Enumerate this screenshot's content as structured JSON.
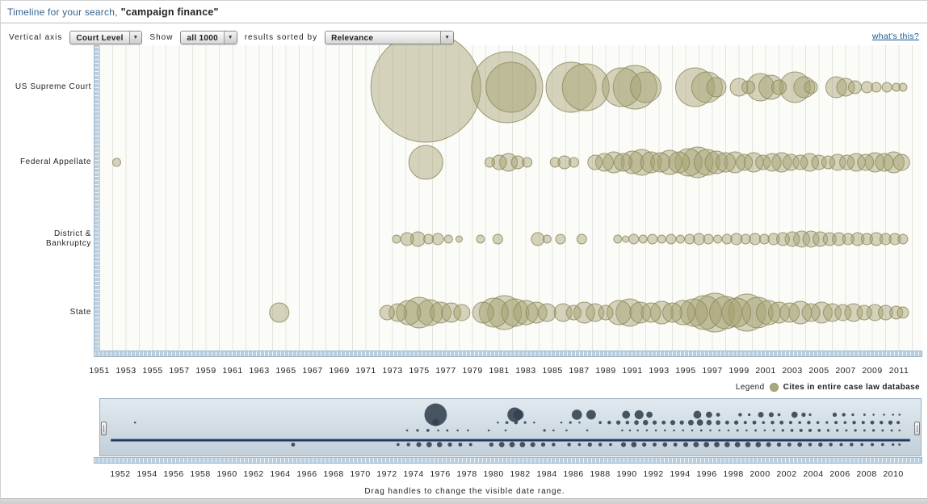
{
  "header": {
    "prefix": "Timeline for your search,",
    "query": "\"campaign finance\""
  },
  "toolbar": {
    "vertical_axis_label": "Vertical axis",
    "vertical_axis_value": "Court Level",
    "show_label": "Show",
    "show_value": "all 1000",
    "sorted_by_label": "results sorted by",
    "sorted_by_value": "Relevance",
    "whats_this_link": "what's this?"
  },
  "chart": {
    "rows": [
      {
        "label": "US Supreme Court"
      },
      {
        "label": "Federal Appellate"
      },
      {
        "label": "District &\nBankruptcy"
      },
      {
        "label": "State"
      }
    ],
    "x_ticks": [
      1951,
      1953,
      1955,
      1957,
      1959,
      1961,
      1963,
      1965,
      1967,
      1969,
      1971,
      1973,
      1975,
      1977,
      1979,
      1981,
      1983,
      1985,
      1987,
      1989,
      1991,
      1993,
      1995,
      1997,
      1999,
      2001,
      2003,
      2005,
      2007,
      2009,
      2011
    ]
  },
  "legend": {
    "label": "Legend",
    "item_label": "Cites in entire case law database"
  },
  "minimap": {
    "x_ticks": [
      1952,
      1954,
      1956,
      1958,
      1960,
      1962,
      1964,
      1966,
      1968,
      1970,
      1972,
      1974,
      1976,
      1978,
      1980,
      1982,
      1984,
      1986,
      1988,
      1990,
      1992,
      1994,
      1996,
      1998,
      2000,
      2002,
      2004,
      2006,
      2008,
      2010
    ],
    "instruction": "Drag handles to change the visible date range."
  },
  "colors": {
    "bubble_fill": "#a39f6e",
    "bubble_stroke": "#8d8a5e",
    "minimap_bubble": "#32404f",
    "minimap_line": "#1c3a5e",
    "scrollbar_blue": "#b9cfe0"
  },
  "chart_data": {
    "type": "bubble-timeline",
    "title": "Timeline for your search: \"campaign finance\"",
    "bubble_meaning": "Cites in entire case law database",
    "x_axis": {
      "min": 1951,
      "max": 2011,
      "tick_step": 2
    },
    "y_categories": [
      "US Supreme Court",
      "Federal Appellate",
      "District & Bankruptcy",
      "State"
    ],
    "series": [
      {
        "category": "US Supreme Court",
        "bubbles": [
          [
            1975.5,
            68
          ],
          [
            1981.6,
            44
          ],
          [
            1981.9,
            31
          ],
          [
            1986.4,
            31
          ],
          [
            1987.5,
            29
          ],
          [
            1990.2,
            24
          ],
          [
            1991.2,
            27
          ],
          [
            1992.0,
            19
          ],
          [
            1995.7,
            24
          ],
          [
            1996.6,
            19
          ],
          [
            1997.3,
            12
          ],
          [
            1999.0,
            11
          ],
          [
            1999.7,
            8
          ],
          [
            2000.6,
            17
          ],
          [
            2001.4,
            15
          ],
          [
            2002.0,
            9
          ],
          [
            2003.2,
            19
          ],
          [
            2003.9,
            13
          ],
          [
            2004.4,
            8
          ],
          [
            2006.3,
            13
          ],
          [
            2007.0,
            11
          ],
          [
            2007.7,
            8
          ],
          [
            2008.6,
            7
          ],
          [
            2009.3,
            6
          ],
          [
            2010.1,
            6
          ],
          [
            2010.8,
            5
          ],
          [
            2011.3,
            5
          ]
        ]
      },
      {
        "category": "Federal Appellate",
        "bubbles": [
          [
            1952.3,
            5
          ],
          [
            1975.5,
            21
          ],
          [
            1980.3,
            6
          ],
          [
            1981.0,
            9
          ],
          [
            1981.7,
            11
          ],
          [
            1982.4,
            8
          ],
          [
            1983.1,
            6
          ],
          [
            1985.2,
            6
          ],
          [
            1985.9,
            8
          ],
          [
            1986.6,
            6
          ],
          [
            1988.2,
            9
          ],
          [
            1988.9,
            11
          ],
          [
            1989.6,
            13
          ],
          [
            1990.3,
            11
          ],
          [
            1991.0,
            14
          ],
          [
            1991.7,
            16
          ],
          [
            1992.4,
            13
          ],
          [
            1993.1,
            12
          ],
          [
            1993.8,
            15
          ],
          [
            1994.5,
            13
          ],
          [
            1995.2,
            17
          ],
          [
            1995.9,
            19
          ],
          [
            1996.6,
            16
          ],
          [
            1997.3,
            14
          ],
          [
            1998.0,
            12
          ],
          [
            1998.7,
            13
          ],
          [
            1999.4,
            10
          ],
          [
            2000.1,
            12
          ],
          [
            2000.8,
            9
          ],
          [
            2001.5,
            11
          ],
          [
            2002.2,
            12
          ],
          [
            2002.9,
            10
          ],
          [
            2003.6,
            9
          ],
          [
            2004.3,
            11
          ],
          [
            2005.0,
            9
          ],
          [
            2005.7,
            8
          ],
          [
            2006.4,
            10
          ],
          [
            2007.1,
            9
          ],
          [
            2007.8,
            11
          ],
          [
            2008.5,
            10
          ],
          [
            2009.2,
            12
          ],
          [
            2009.9,
            11
          ],
          [
            2010.6,
            13
          ],
          [
            2011.2,
            10
          ]
        ]
      },
      {
        "category": "District & Bankruptcy",
        "bubbles": [
          [
            1973.3,
            5
          ],
          [
            1974.1,
            8
          ],
          [
            1974.9,
            9
          ],
          [
            1975.7,
            6
          ],
          [
            1976.4,
            7
          ],
          [
            1977.2,
            5
          ],
          [
            1978.0,
            4
          ],
          [
            1979.6,
            5
          ],
          [
            1980.9,
            6
          ],
          [
            1983.9,
            8
          ],
          [
            1984.6,
            5
          ],
          [
            1985.6,
            6
          ],
          [
            1987.2,
            6
          ],
          [
            1989.9,
            5
          ],
          [
            1990.5,
            4
          ],
          [
            1991.1,
            6
          ],
          [
            1991.8,
            5
          ],
          [
            1992.5,
            6
          ],
          [
            1993.2,
            5
          ],
          [
            1993.9,
            6
          ],
          [
            1994.6,
            5
          ],
          [
            1995.3,
            6
          ],
          [
            1996.0,
            7
          ],
          [
            1996.7,
            6
          ],
          [
            1997.4,
            5
          ],
          [
            1998.1,
            6
          ],
          [
            1998.8,
            7
          ],
          [
            1999.5,
            6
          ],
          [
            2000.2,
            7
          ],
          [
            2000.9,
            6
          ],
          [
            2001.6,
            7
          ],
          [
            2002.3,
            8
          ],
          [
            2003.0,
            9
          ],
          [
            2003.7,
            10
          ],
          [
            2004.4,
            10
          ],
          [
            2005.1,
            9
          ],
          [
            2005.8,
            8
          ],
          [
            2006.5,
            8
          ],
          [
            2007.2,
            7
          ],
          [
            2007.9,
            8
          ],
          [
            2008.6,
            7
          ],
          [
            2009.3,
            8
          ],
          [
            2010.0,
            7
          ],
          [
            2010.7,
            7
          ],
          [
            2011.3,
            6
          ]
        ]
      },
      {
        "category": "State",
        "bubbles": [
          [
            1964.5,
            12
          ],
          [
            1972.6,
            9
          ],
          [
            1973.4,
            11
          ],
          [
            1974.2,
            15
          ],
          [
            1975.0,
            19
          ],
          [
            1975.8,
            16
          ],
          [
            1976.6,
            13
          ],
          [
            1977.4,
            12
          ],
          [
            1978.2,
            10
          ],
          [
            1979.8,
            13
          ],
          [
            1980.6,
            18
          ],
          [
            1981.4,
            21
          ],
          [
            1982.2,
            17
          ],
          [
            1983.0,
            15
          ],
          [
            1983.8,
            13
          ],
          [
            1984.6,
            11
          ],
          [
            1985.8,
            11
          ],
          [
            1986.6,
            9
          ],
          [
            1987.4,
            13
          ],
          [
            1988.2,
            11
          ],
          [
            1989.0,
            9
          ],
          [
            1990.0,
            15
          ],
          [
            1990.8,
            17
          ],
          [
            1991.6,
            13
          ],
          [
            1992.4,
            12
          ],
          [
            1993.2,
            14
          ],
          [
            1994.0,
            12
          ],
          [
            1994.8,
            15
          ],
          [
            1995.6,
            17
          ],
          [
            1996.4,
            21
          ],
          [
            1997.2,
            24
          ],
          [
            1998.0,
            20
          ],
          [
            1998.8,
            18
          ],
          [
            1999.6,
            23
          ],
          [
            2000.4,
            19
          ],
          [
            2001.2,
            15
          ],
          [
            2002.0,
            13
          ],
          [
            2002.8,
            12
          ],
          [
            2003.6,
            14
          ],
          [
            2004.4,
            11
          ],
          [
            2005.2,
            13
          ],
          [
            2006.0,
            11
          ],
          [
            2006.8,
            10
          ],
          [
            2007.6,
            11
          ],
          [
            2008.4,
            9
          ],
          [
            2009.2,
            10
          ],
          [
            2010.0,
            9
          ],
          [
            2010.8,
            8
          ],
          [
            2011.3,
            7
          ]
        ]
      }
    ]
  }
}
